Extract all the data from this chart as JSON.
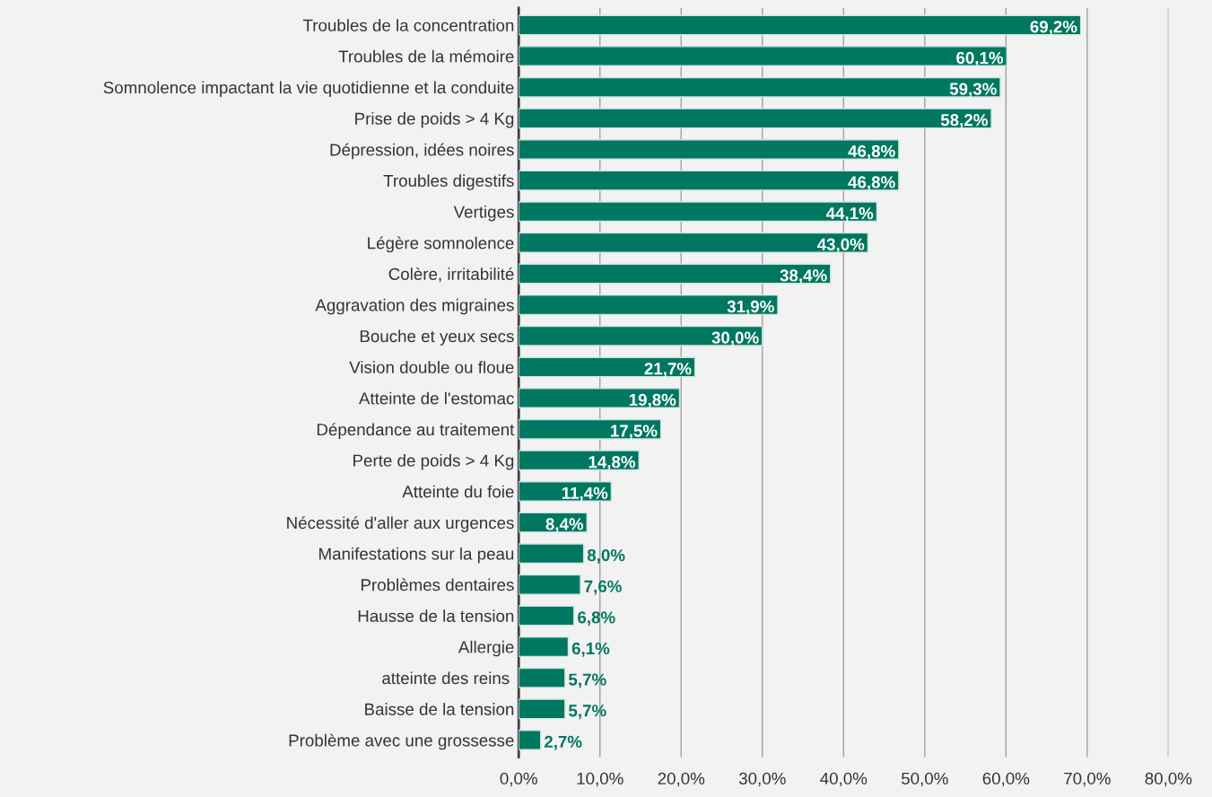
{
  "chart_data": {
    "type": "bar",
    "orientation": "horizontal",
    "categories": [
      "Troubles de la concentration",
      "Troubles de la mémoire",
      "Somnolence impactant la vie quotidienne et la conduite",
      "Prise de poids > 4 Kg",
      "Dépression, idées noires",
      "Troubles digestifs",
      "Vertiges",
      "Légère somnolence",
      "Colère, irritabilité",
      "Aggravation des migraines",
      "Bouche et yeux secs",
      "Vision double ou floue",
      "Atteinte de l'estomac",
      "Dépendance au traitement",
      "Perte de poids > 4 Kg",
      "Atteinte du foie",
      "Nécessité d'aller aux urgences",
      "Manifestations sur la peau",
      "Problèmes dentaires",
      "Hausse de la tension",
      "Allergie",
      "atteinte des reins ",
      "Baisse de la tension",
      "Problème avec une grossesse"
    ],
    "values": [
      69.2,
      60.1,
      59.3,
      58.2,
      46.8,
      46.8,
      44.1,
      43.0,
      38.4,
      31.9,
      30.0,
      21.7,
      19.8,
      17.5,
      14.8,
      11.4,
      8.4,
      8.0,
      7.6,
      6.8,
      6.1,
      5.7,
      5.7,
      2.7
    ],
    "value_labels": [
      "69,2%",
      "60,1%",
      "59,3%",
      "58,2%",
      "46,8%",
      "46,8%",
      "44,1%",
      "43,0%",
      "38,4%",
      "31,9%",
      "30,0%",
      "21,7%",
      "19,8%",
      "17,5%",
      "14,8%",
      "11,4%",
      "8,4%",
      "8,0%",
      "7,6%",
      "6,8%",
      "6,1%",
      "5,7%",
      "5,7%",
      "2,7%"
    ],
    "color": "#007760",
    "xlim": [
      0,
      80
    ],
    "xticks": [
      {
        "value": 0,
        "label": "0,0%"
      },
      {
        "value": 10,
        "label": "10,0%"
      },
      {
        "value": 20,
        "label": "20,0%"
      },
      {
        "value": 30,
        "label": "30,0%"
      },
      {
        "value": 40,
        "label": "40,0%"
      },
      {
        "value": 50,
        "label": "50,0%"
      },
      {
        "value": 60,
        "label": "60,0%"
      },
      {
        "value": 70,
        "label": "70,0%"
      },
      {
        "value": 80,
        "label": "80,0%"
      }
    ],
    "grid": "x"
  }
}
